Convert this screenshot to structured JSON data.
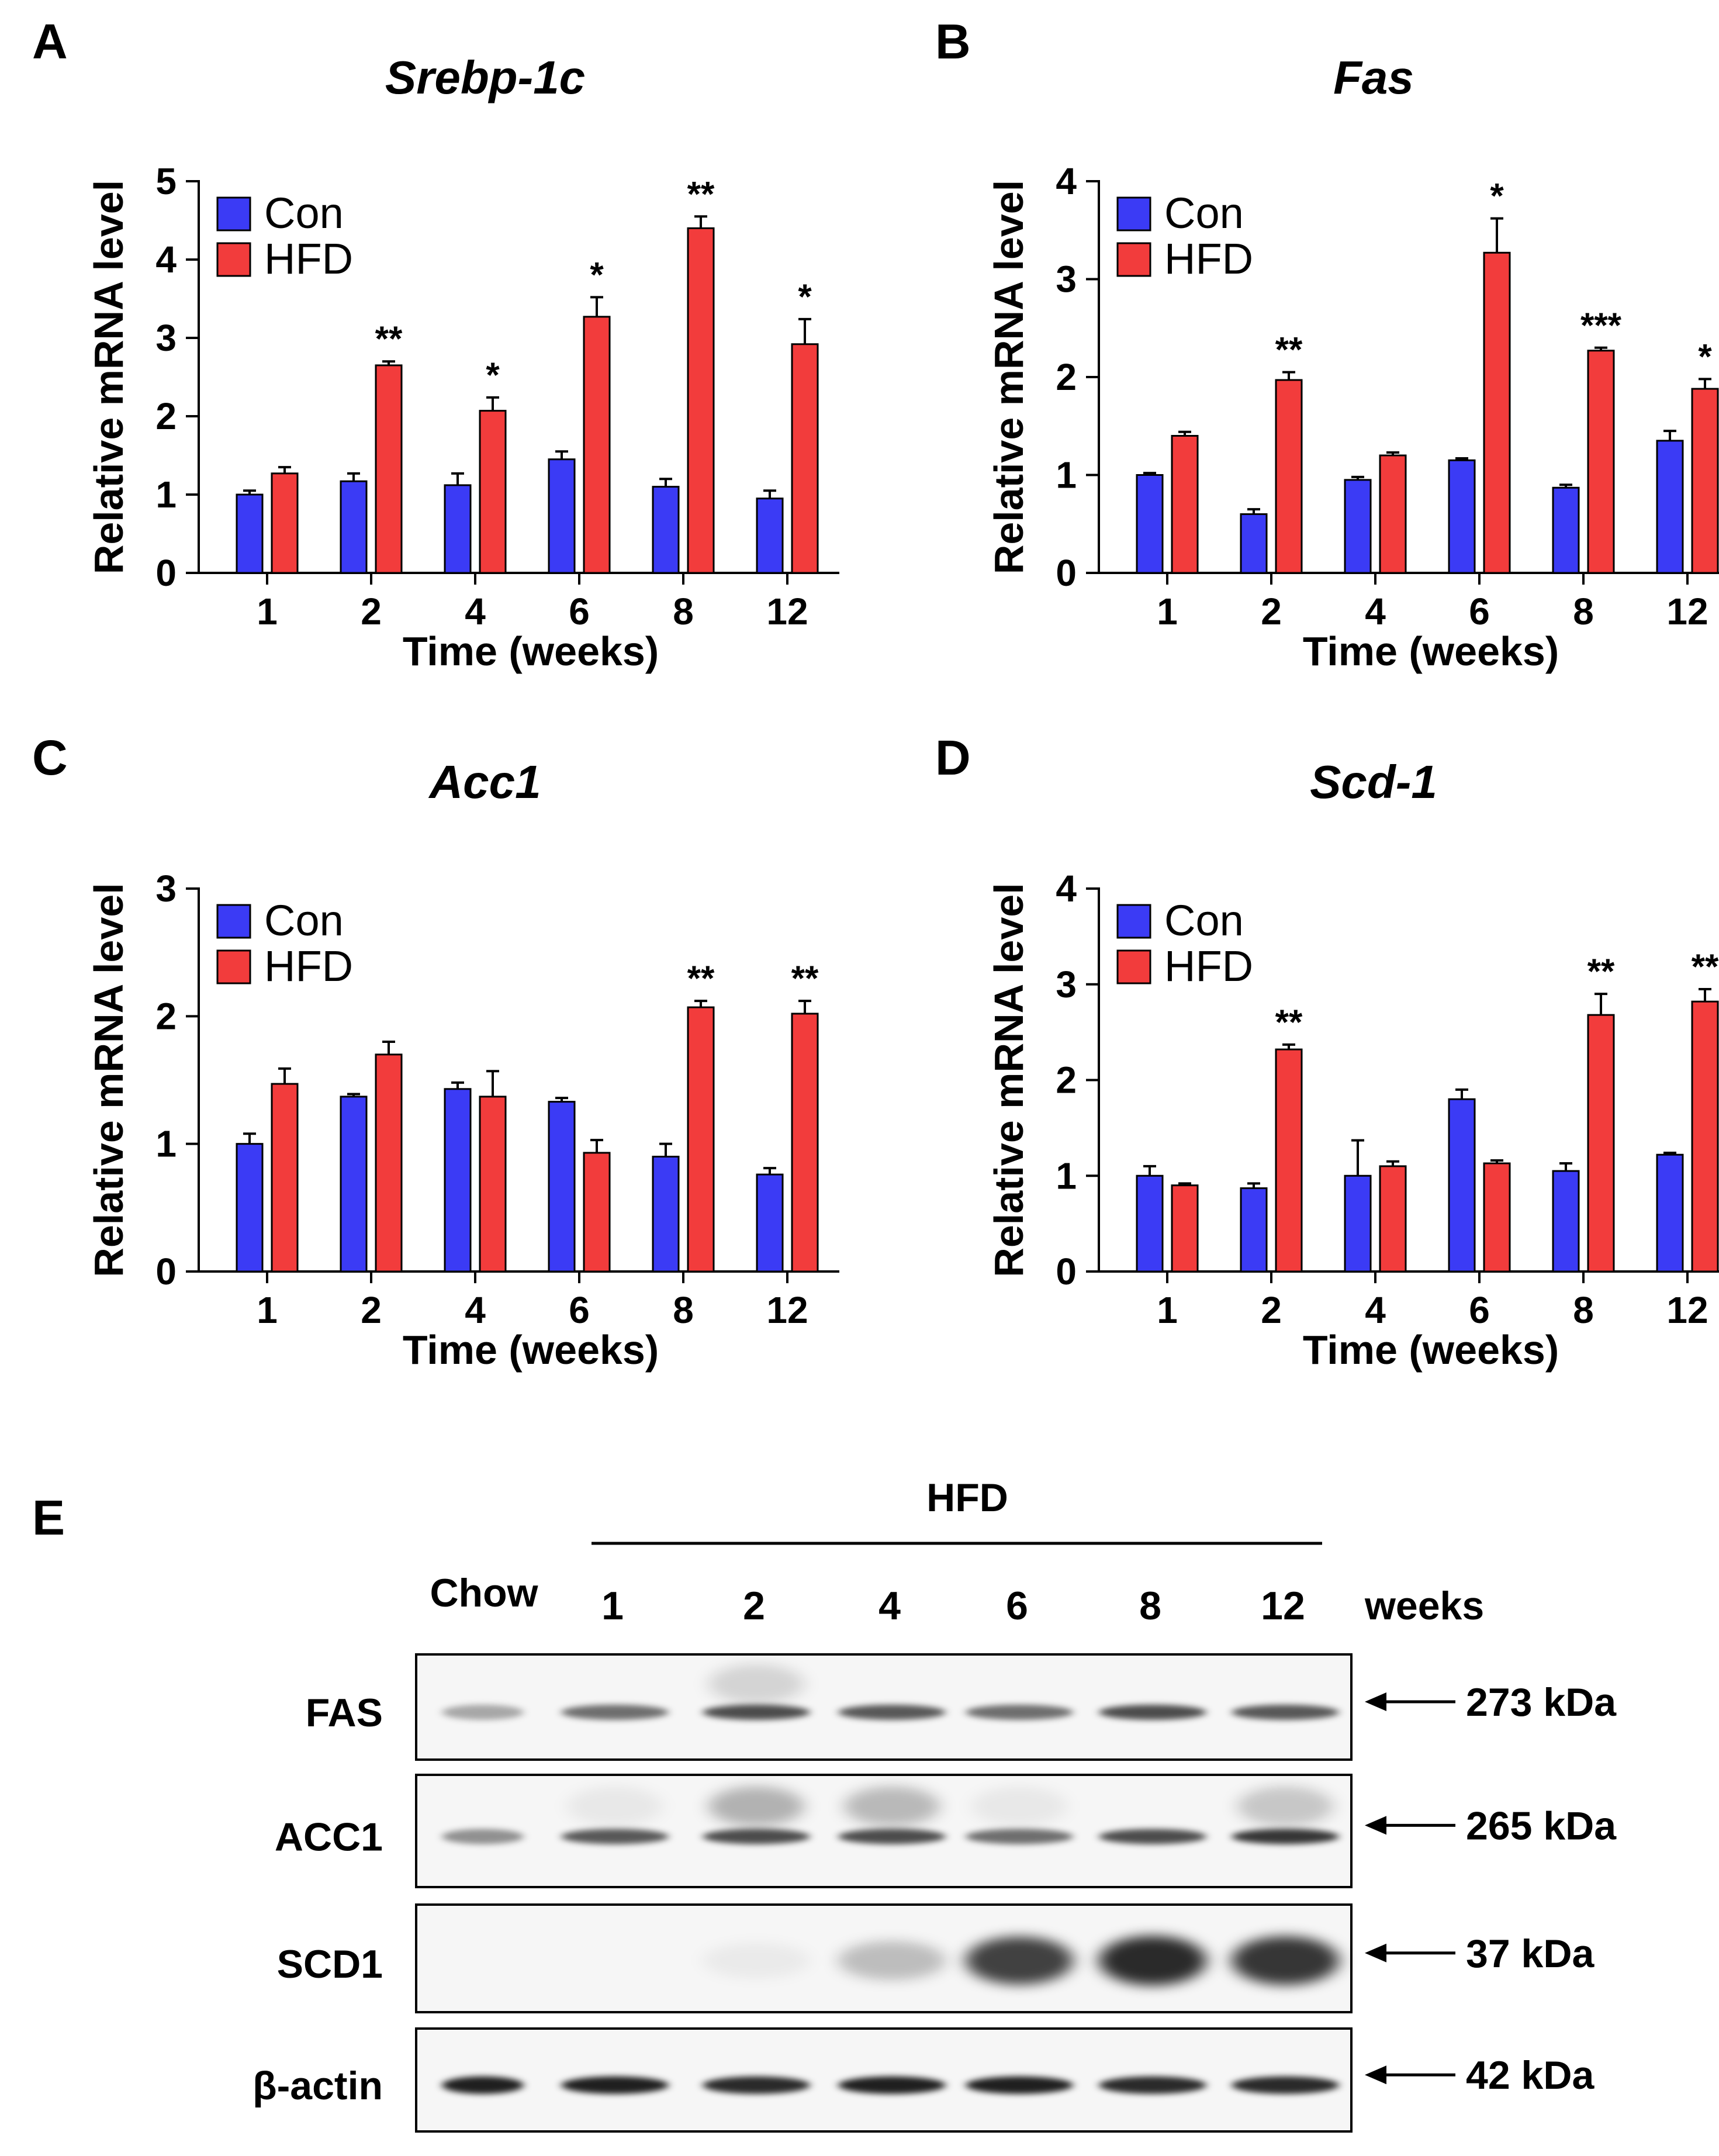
{
  "colors": {
    "con": "#3b3bf5",
    "hfd": "#f23c3c",
    "axis": "#000000"
  },
  "chart_data": [
    {
      "panel": "A",
      "type": "bar",
      "title": "Srebp-1c",
      "xlabel": "Time (weeks)",
      "ylabel": "Relative mRNA level",
      "categories": [
        "1",
        "2",
        "4",
        "6",
        "8",
        "12"
      ],
      "ylim": [
        0,
        5
      ],
      "yticks": [
        "0",
        "1",
        "2",
        "3",
        "4",
        "5"
      ],
      "legend": "top-left",
      "series": [
        {
          "name": "Con",
          "color": "#3b3bf5",
          "values": [
            1.0,
            1.17,
            1.12,
            1.45,
            1.1,
            0.95
          ],
          "errors": [
            0.05,
            0.1,
            0.15,
            0.1,
            0.1,
            0.1
          ]
        },
        {
          "name": "HFD",
          "color": "#f23c3c",
          "values": [
            1.27,
            2.65,
            2.07,
            3.27,
            4.4,
            2.92
          ],
          "errors": [
            0.08,
            0.05,
            0.17,
            0.25,
            0.15,
            0.32
          ]
        }
      ],
      "significance": [
        "",
        "**",
        "*",
        "*",
        "**",
        "*"
      ]
    },
    {
      "panel": "B",
      "type": "bar",
      "title": "Fas",
      "xlabel": "Time (weeks)",
      "ylabel": "Relative mRNA level",
      "categories": [
        "1",
        "2",
        "4",
        "6",
        "8",
        "12"
      ],
      "ylim": [
        0,
        4
      ],
      "yticks": [
        "0",
        "1",
        "2",
        "3",
        "4"
      ],
      "legend": "top-left",
      "series": [
        {
          "name": "Con",
          "color": "#3b3bf5",
          "values": [
            1.0,
            0.6,
            0.95,
            1.15,
            0.87,
            1.35
          ],
          "errors": [
            0.02,
            0.05,
            0.03,
            0.02,
            0.03,
            0.1
          ]
        },
        {
          "name": "HFD",
          "color": "#f23c3c",
          "values": [
            1.4,
            1.97,
            1.2,
            3.27,
            2.27,
            1.88
          ],
          "errors": [
            0.04,
            0.08,
            0.03,
            0.35,
            0.03,
            0.1
          ]
        }
      ],
      "significance": [
        "",
        "**",
        "",
        "*",
        "***",
        "*"
      ]
    },
    {
      "panel": "C",
      "type": "bar",
      "title": "Acc1",
      "xlabel": "Time (weeks)",
      "ylabel": "Relative mRNA level",
      "categories": [
        "1",
        "2",
        "4",
        "6",
        "8",
        "12"
      ],
      "ylim": [
        0,
        3
      ],
      "yticks": [
        "0",
        "1",
        "2",
        "3"
      ],
      "legend": "top-left",
      "series": [
        {
          "name": "Con",
          "color": "#3b3bf5",
          "values": [
            1.0,
            1.37,
            1.43,
            1.33,
            0.9,
            0.76
          ],
          "errors": [
            0.08,
            0.02,
            0.05,
            0.03,
            0.1,
            0.05
          ]
        },
        {
          "name": "HFD",
          "color": "#f23c3c",
          "values": [
            1.47,
            1.7,
            1.37,
            0.93,
            2.07,
            2.02
          ],
          "errors": [
            0.12,
            0.1,
            0.2,
            0.1,
            0.05,
            0.1
          ]
        }
      ],
      "significance": [
        "",
        "",
        "",
        "",
        "**",
        "**"
      ]
    },
    {
      "panel": "D",
      "type": "bar",
      "title": "Scd-1",
      "xlabel": "Time (weeks)",
      "ylabel": "Relative mRNA level",
      "categories": [
        "1",
        "2",
        "4",
        "6",
        "8",
        "12"
      ],
      "ylim": [
        0,
        4
      ],
      "yticks": [
        "0",
        "1",
        "2",
        "3",
        "4"
      ],
      "legend": "top-left",
      "series": [
        {
          "name": "Con",
          "color": "#3b3bf5",
          "values": [
            1.0,
            0.87,
            1.0,
            1.8,
            1.05,
            1.22
          ],
          "errors": [
            0.1,
            0.05,
            0.37,
            0.1,
            0.08,
            0.02
          ]
        },
        {
          "name": "HFD",
          "color": "#f23c3c",
          "values": [
            0.9,
            2.32,
            1.1,
            1.13,
            2.68,
            2.82
          ],
          "errors": [
            0.02,
            0.05,
            0.05,
            0.03,
            0.22,
            0.13
          ]
        }
      ],
      "significance": [
        "",
        "**",
        "",
        "",
        "**",
        "**"
      ]
    }
  ],
  "blot": {
    "panel": "E",
    "group_label": "HFD",
    "lanes": [
      "Chow",
      "1",
      "2",
      "4",
      "6",
      "8",
      "12"
    ],
    "lanes_unit": "weeks",
    "rows": [
      {
        "label": "FAS",
        "size": "273 kDa",
        "intensity": [
          0.35,
          0.6,
          0.75,
          0.7,
          0.6,
          0.75,
          0.7
        ],
        "upper_smear": [
          0,
          0,
          0.25,
          0,
          0,
          0,
          0
        ]
      },
      {
        "label": "ACC1",
        "size": "265 kDa",
        "intensity": [
          0.45,
          0.7,
          0.75,
          0.75,
          0.6,
          0.75,
          0.85
        ],
        "upper_smear": [
          0,
          0.1,
          0.5,
          0.45,
          0.1,
          0,
          0.35
        ]
      },
      {
        "label": "SCD1",
        "size": "37 kDa",
        "intensity": [
          0,
          0,
          0.05,
          0.25,
          0.8,
          0.9,
          0.85
        ],
        "upper_smear": [
          0,
          0,
          0,
          0,
          0,
          0,
          0
        ]
      },
      {
        "label": "β-actin",
        "size": "42 kDa",
        "intensity": [
          0.95,
          0.95,
          0.9,
          0.95,
          0.95,
          0.9,
          0.9
        ],
        "upper_smear": [
          0,
          0,
          0,
          0,
          0,
          0,
          0
        ]
      }
    ]
  }
}
